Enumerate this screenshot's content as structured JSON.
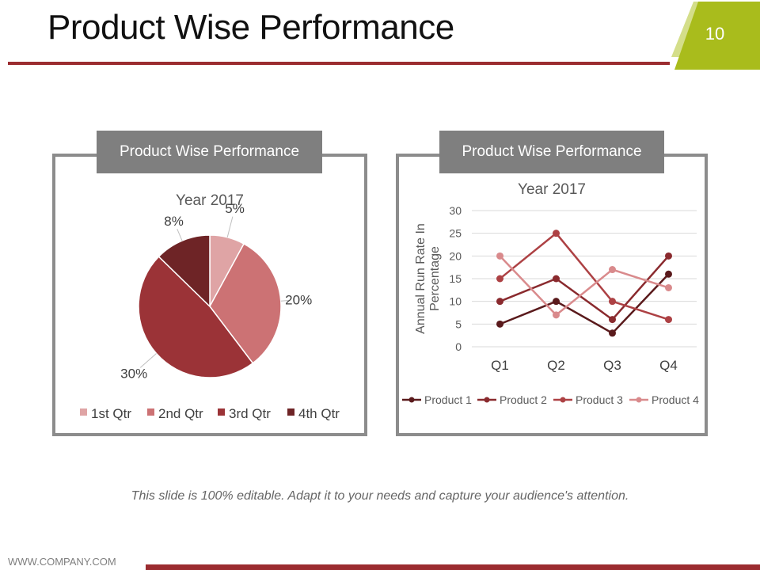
{
  "slide": {
    "title": "Product Wise Performance",
    "page_number": "10",
    "footer_note": "This slide is 100% editable. Adapt it to your needs and capture your audience's attention.",
    "website": "WWW.COMPANY.COM"
  },
  "colors": {
    "accent_red": "#9b2c30",
    "badge_green": "#a9bc1c",
    "panel_gray": "#7f7f7f"
  },
  "panels": {
    "left_header": "Product Wise Performance",
    "right_header": "Product Wise Performance"
  },
  "chart_data": [
    {
      "type": "pie",
      "title": "Year 2017",
      "categories": [
        "1st Qtr",
        "2nd Qtr",
        "3rd Qtr",
        "4th Qtr"
      ],
      "values": [
        5,
        20,
        30,
        8
      ],
      "labels": [
        "5%",
        "20%",
        "30%",
        "8%"
      ],
      "colors": [
        "#dfa4a5",
        "#cc7274",
        "#9b3337",
        "#6e2426"
      ],
      "legend_position": "bottom"
    },
    {
      "type": "line",
      "title": "Year 2017",
      "categories": [
        "Q1",
        "Q2",
        "Q3",
        "Q4"
      ],
      "ylabel": "Annual Run Rate In Percentage",
      "xlabel": "",
      "ylim": [
        0,
        30
      ],
      "yticks": [
        0,
        5,
        10,
        15,
        20,
        25,
        30
      ],
      "grid": true,
      "legend_position": "bottom",
      "series": [
        {
          "name": "Product 1",
          "values": [
            5,
            10,
            3,
            16
          ],
          "color": "#5a1a1c"
        },
        {
          "name": "Product 2",
          "values": [
            10,
            15,
            6,
            20
          ],
          "color": "#8a2a2e"
        },
        {
          "name": "Product 3",
          "values": [
            15,
            25,
            10,
            6
          ],
          "color": "#ad4144"
        },
        {
          "name": "Product 4",
          "values": [
            20,
            7,
            17,
            13
          ],
          "color": "#d98a8c"
        }
      ]
    }
  ]
}
